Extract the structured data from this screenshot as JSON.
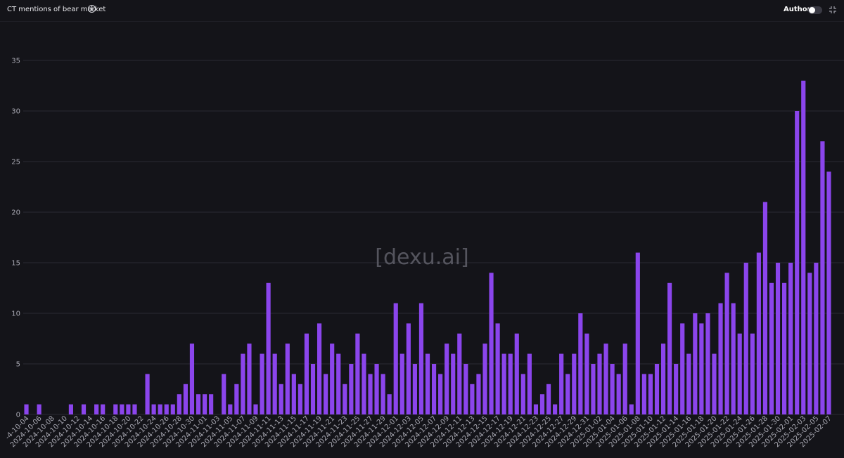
{
  "header": {
    "title": "CT mentions of bear market",
    "info_icon": "info-icon",
    "authors_label": "Authors",
    "authors_toggle_on": false,
    "collapse_icon": "collapse-icon"
  },
  "watermark": "[dexu.ai]",
  "colors": {
    "bar": "#8b45ec",
    "background": "#141419",
    "grid": "#2a2a32"
  },
  "chart_data": {
    "type": "bar",
    "title": "CT mentions of bear market",
    "xlabel": "",
    "ylabel": "",
    "ylim": [
      0,
      35
    ],
    "yticks": [
      0,
      5,
      10,
      15,
      20,
      25,
      30,
      35
    ],
    "grid": true,
    "start_date": "2024-10-04",
    "xtick_labels": [
      "-4-10-04",
      "2024-10-06",
      "2024-10-08",
      "2024-10-10",
      "2024-10-12",
      "2024-10-14",
      "2024-10-16",
      "2024-10-18",
      "2024-10-20",
      "2024-10-22",
      "2024-10-24",
      "2024-10-26",
      "2024-10-28",
      "2024-10-30",
      "2024-11-01",
      "2024-11-03",
      "2024-11-05",
      "2024-11-07",
      "2024-11-09",
      "2024-11-11",
      "2024-11-13",
      "2024-11-15",
      "2024-11-17",
      "2024-11-19",
      "2024-11-21",
      "2024-11-23",
      "2024-11-25",
      "2024-11-27",
      "2024-11-29",
      "2024-12-01",
      "2024-12-03",
      "2024-12-05",
      "2024-12-07",
      "2024-12-09",
      "2024-12-11",
      "2024-12-13",
      "2024-12-15",
      "2024-12-17",
      "2024-12-19",
      "2024-12-21",
      "2024-12-23",
      "2024-12-25",
      "2024-12-27",
      "2024-12-29",
      "2024-12-31",
      "2025-01-02",
      "2025-01-04",
      "2025-01-06",
      "2025-01-08",
      "2025-01-10",
      "2025-01-12",
      "2025-01-14",
      "2025-01-16",
      "2025-01-18",
      "2025-01-20",
      "2025-01-22",
      "2025-01-24",
      "2025-01-26",
      "2025-01-28",
      "2025-01-30",
      "2025-02-01",
      "2025-02-03",
      "2025-02-05",
      "2025-02-07"
    ],
    "values": [
      1,
      0,
      1,
      0,
      0,
      0,
      0,
      1,
      0,
      1,
      0,
      1,
      1,
      0,
      1,
      1,
      1,
      1,
      0,
      4,
      1,
      1,
      1,
      1,
      2,
      3,
      7,
      2,
      2,
      2,
      0,
      4,
      1,
      3,
      6,
      7,
      1,
      6,
      13,
      6,
      3,
      7,
      4,
      3,
      8,
      5,
      9,
      4,
      7,
      6,
      3,
      5,
      8,
      6,
      4,
      5,
      4,
      2,
      11,
      6,
      9,
      5,
      11,
      6,
      5,
      4,
      7,
      6,
      8,
      5,
      3,
      4,
      7,
      14,
      9,
      6,
      6,
      8,
      4,
      6,
      1,
      2,
      3,
      1,
      6,
      4,
      6,
      10,
      8,
      5,
      6,
      7,
      5,
      4,
      7,
      1,
      16,
      4,
      4,
      5,
      7,
      13,
      5,
      9,
      6,
      10,
      9,
      10,
      6,
      11,
      14,
      11,
      8,
      15,
      8,
      16,
      21,
      13,
      15,
      13,
      15,
      30,
      33,
      14,
      15,
      27,
      24
    ]
  }
}
